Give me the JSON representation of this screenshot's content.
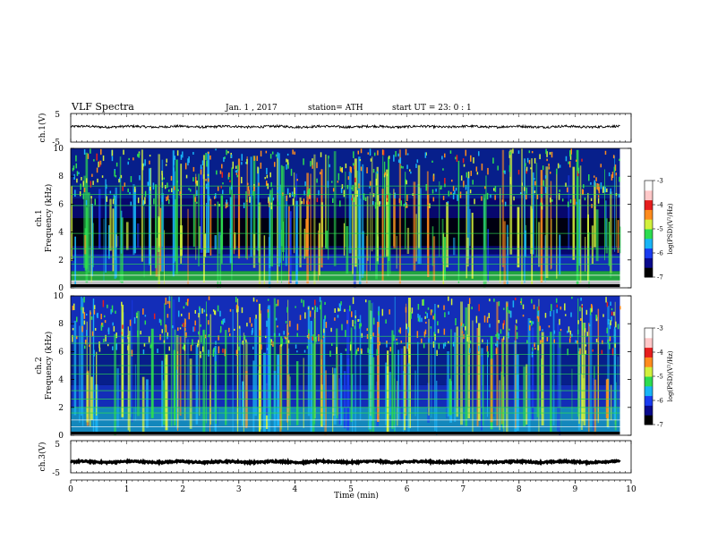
{
  "header": {
    "title": "VLF  Spectra",
    "date": "Jan.  1  , 2017",
    "station": "station= ATH",
    "start": "start  UT  =    23: 0   : 1"
  },
  "chart_data": [
    {
      "type": "line",
      "name": "ch1-waveform",
      "ylabel": "ch.1(V)",
      "ylim": [
        -5,
        5
      ],
      "yticks": [
        "5",
        "-5"
      ],
      "xlim": [
        0,
        10
      ],
      "approx_level": 0.4,
      "noise_amplitude": 0.4,
      "color": "#000000"
    },
    {
      "type": "heatmap",
      "name": "ch1-spectrogram",
      "ylabel_line1": "ch.1",
      "ylabel_line2": "Frequency  (kHz)",
      "ylim": [
        0,
        10
      ],
      "yticks": [
        "0",
        "2",
        "4",
        "6",
        "8",
        "10"
      ],
      "xlim": [
        0,
        9.8
      ],
      "colorbar": {
        "label": "log(PSD)(V²/Hz)",
        "range": [
          -7,
          -3
        ],
        "ticks": [
          "-3",
          "-4",
          "-5",
          "-6",
          "-7"
        ],
        "colors": [
          "#000000",
          "#0a0a8c",
          "#1a3cf0",
          "#19b4f5",
          "#2ddc50",
          "#d2f03c",
          "#ff8c1e",
          "#e61e1e",
          "#ffc8c8",
          "#ffffff"
        ]
      }
    },
    {
      "type": "heatmap",
      "name": "ch2-spectrogram",
      "ylabel_line1": "ch.2",
      "ylabel_line2": "Frequency  (kHz)",
      "ylim": [
        0,
        10
      ],
      "yticks": [
        "0",
        "2",
        "4",
        "6",
        "8",
        "10"
      ],
      "xlim": [
        0,
        9.8
      ],
      "colorbar": {
        "label": "log(PSD)(V²/Hz)",
        "range": [
          -7,
          -3
        ],
        "ticks": [
          "-3",
          "-4",
          "-5",
          "-6",
          "-7"
        ]
      }
    },
    {
      "type": "line",
      "name": "ch3-waveform",
      "ylabel": "ch.3(V)",
      "ylim": [
        -5,
        5
      ],
      "yticks": [
        "5",
        "-5"
      ],
      "xlim": [
        0,
        10
      ],
      "approx_level": -1.6,
      "noise_amplitude": 0.25,
      "color": "#000000"
    }
  ],
  "xaxis": {
    "label": "Time  (min)",
    "range": [
      0,
      10
    ],
    "ticks": [
      "0",
      "1",
      "2",
      "3",
      "4",
      "5",
      "6",
      "7",
      "8",
      "9",
      "10"
    ]
  }
}
